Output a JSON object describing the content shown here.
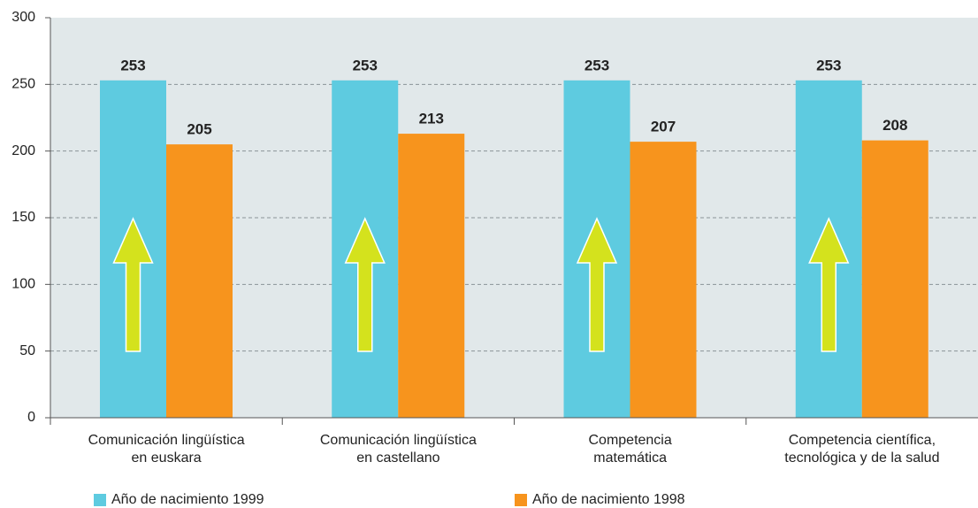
{
  "chart_data": {
    "type": "bar",
    "categories": [
      "Comunicación lingüística\nen euskara",
      "Comunicación lingüística\nen castellano",
      "Competencia\nmatemática",
      "Competencia científica,\ntecnológica y de la salud"
    ],
    "series": [
      {
        "name": "Año de nacimiento 1999",
        "color": "#5ecbe0",
        "values": [
          253,
          253,
          253,
          253
        ]
      },
      {
        "name": "Año de nacimiento 1998",
        "color": "#f7941d",
        "values": [
          205,
          213,
          207,
          208
        ]
      }
    ],
    "ylim": [
      0,
      300
    ],
    "yticks": [
      0,
      50,
      100,
      150,
      200,
      250,
      300
    ],
    "grid": true
  }
}
